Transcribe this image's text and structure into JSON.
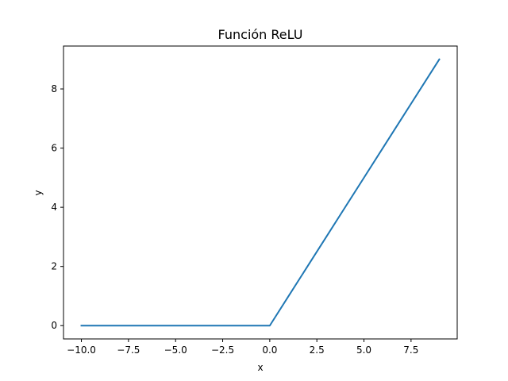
{
  "chart_data": {
    "type": "line",
    "title": "Función ReLU",
    "xlabel": "x",
    "ylabel": "y",
    "xlim": [
      -10.95,
      9.95
    ],
    "ylim": [
      -0.45,
      9.45
    ],
    "x_ticks": [
      -10.0,
      -7.5,
      -5.0,
      -2.5,
      0.0,
      2.5,
      5.0,
      7.5
    ],
    "x_tick_labels": [
      "−10.0",
      "−7.5",
      "−5.0",
      "−2.5",
      "0.0",
      "2.5",
      "5.0",
      "7.5"
    ],
    "y_ticks": [
      0,
      2,
      4,
      6,
      8
    ],
    "y_tick_labels": [
      "0",
      "2",
      "4",
      "6",
      "8"
    ],
    "grid": false,
    "series": [
      {
        "color": "#1f77b4",
        "x": [
          -10,
          -9,
          -8,
          -7,
          -6,
          -5,
          -4,
          -3,
          -2,
          -1,
          0,
          1,
          2,
          3,
          4,
          5,
          6,
          7,
          8,
          9
        ],
        "y": [
          0,
          0,
          0,
          0,
          0,
          0,
          0,
          0,
          0,
          0,
          0,
          1,
          2,
          3,
          4,
          5,
          6,
          7,
          8,
          9
        ]
      }
    ]
  }
}
